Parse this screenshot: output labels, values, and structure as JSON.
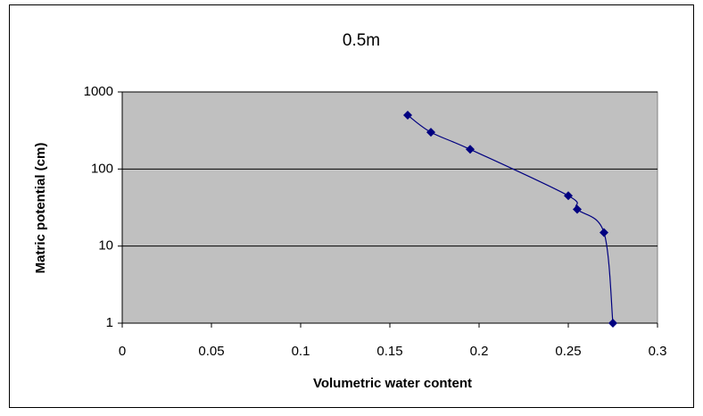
{
  "chart_data": {
    "type": "scatter",
    "title": "0.5m",
    "x_label": "Volumetric water content",
    "y_label": "Matric potential (cm)",
    "series": [
      {
        "name": "0.5m",
        "color": "#000080",
        "x": [
          0.16,
          0.173,
          0.195,
          0.25,
          0.255,
          0.27,
          0.275
        ],
        "values": [
          500,
          300,
          180,
          45,
          30,
          15,
          1
        ]
      }
    ],
    "xlim": [
      0,
      0.3
    ],
    "xticks": [
      0,
      0.05,
      0.1,
      0.15,
      0.2,
      0.25,
      0.3
    ],
    "ylim": [
      1,
      1000
    ],
    "yticks": [
      1,
      10,
      100,
      1000
    ],
    "log_y": true,
    "grid": true,
    "plot_background": "#c0c0c0",
    "smooth": true
  }
}
